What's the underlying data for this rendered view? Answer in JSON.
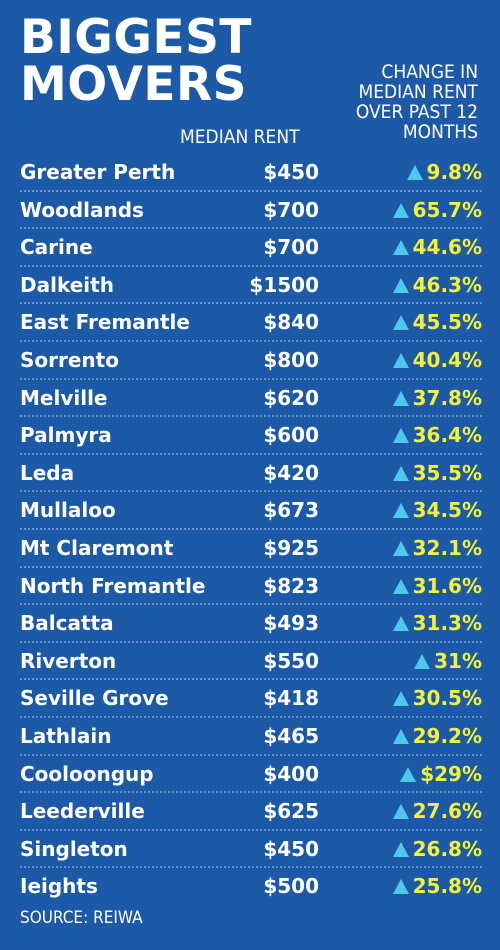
{
  "title_lines": [
    "BIGGEST",
    "MOVERS"
  ],
  "header": {
    "rent_label": "MEDIAN RENT",
    "change_label_lines": [
      "CHANGE IN",
      "MEDIAN RENT",
      "OVER PAST 12",
      "MONTHS"
    ]
  },
  "source": "SOURCE: REIWA",
  "colors": {
    "background": "#1c59a6",
    "change_text": "#f4f13b",
    "up_arrow": "#4fc8f0",
    "text": "#ffffff"
  },
  "icons": {
    "change_indicator": "up-triangle-icon"
  },
  "rows": [
    {
      "suburb": "Greater Perth",
      "rent": "$450",
      "change": "9.8%"
    },
    {
      "suburb": "Woodlands",
      "rent": "$700",
      "change": "65.7%"
    },
    {
      "suburb": "Carine",
      "rent": "$700",
      "change": "44.6%"
    },
    {
      "suburb": "Dalkeith",
      "rent": "$1500",
      "change": "46.3%"
    },
    {
      "suburb": "East Fremantle",
      "rent": "$840",
      "change": "45.5%"
    },
    {
      "suburb": "Sorrento",
      "rent": "$800",
      "change": "40.4%"
    },
    {
      "suburb": "Melville",
      "rent": "$620",
      "change": "37.8%"
    },
    {
      "suburb": "Palmyra",
      "rent": "$600",
      "change": "36.4%"
    },
    {
      "suburb": "Leda",
      "rent": "$420",
      "change": "35.5%"
    },
    {
      "suburb": "Mullaloo",
      "rent": "$673",
      "change": "34.5%"
    },
    {
      "suburb": "Mt Claremont",
      "rent": "$925",
      "change": "32.1%"
    },
    {
      "suburb": "North Fremantle",
      "rent": "$823",
      "change": "31.6%"
    },
    {
      "suburb": "Balcatta",
      "rent": "$493",
      "change": "31.3%"
    },
    {
      "suburb": "Riverton",
      "rent": "$550",
      "change": "31%"
    },
    {
      "suburb": "Seville Grove",
      "rent": "$418",
      "change": "30.5%"
    },
    {
      "suburb": "Lathlain",
      "rent": "$465",
      "change": "29.2%"
    },
    {
      "suburb": "Cooloongup",
      "rent": "$400",
      "change": "$29%"
    },
    {
      "suburb": "Leederville",
      "rent": "$625",
      "change": "27.6%"
    },
    {
      "suburb": "Singleton",
      "rent": "$450",
      "change": "26.8%"
    },
    {
      "suburb": "Ieights",
      "rent": "$500",
      "change": "25.8%"
    }
  ],
  "chart_data": {
    "type": "table",
    "title": "BIGGEST MOVERS",
    "columns": [
      "",
      "MEDIAN RENT",
      "CHANGE IN MEDIAN RENT OVER PAST 12 MONTHS"
    ],
    "categories": [
      "Greater Perth",
      "Woodlands",
      "Carine",
      "Dalkeith",
      "East Fremantle",
      "Sorrento",
      "Melville",
      "Palmyra",
      "Leda",
      "Mullaloo",
      "Mt Claremont",
      "North Fremantle",
      "Balcatta",
      "Riverton",
      "Seville Grove",
      "Lathlain",
      "Cooloongup",
      "Leederville",
      "Singleton",
      "Ieights"
    ],
    "series": [
      {
        "name": "MEDIAN RENT",
        "values": [
          450,
          700,
          700,
          1500,
          840,
          800,
          620,
          600,
          420,
          673,
          925,
          823,
          493,
          550,
          418,
          465,
          400,
          625,
          450,
          500
        ]
      },
      {
        "name": "CHANGE IN MEDIAN RENT OVER PAST 12 MONTHS",
        "values": [
          9.8,
          65.7,
          44.6,
          46.3,
          45.5,
          40.4,
          37.8,
          36.4,
          35.5,
          34.5,
          32.1,
          31.6,
          31.3,
          31,
          30.5,
          29.2,
          29,
          27.6,
          26.8,
          25.8
        ]
      }
    ],
    "source": "SOURCE: REIWA"
  }
}
